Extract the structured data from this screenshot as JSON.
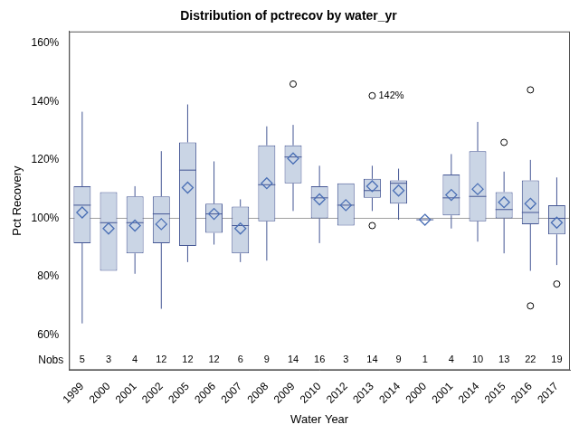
{
  "chart_data": {
    "type": "box",
    "title": "Distribution of pctrecov by water_yr",
    "x_label": "Water Year",
    "y_label": "Pct Recovery",
    "categories": [
      "1999",
      "2000",
      "2001",
      "2002",
      "2005",
      "2006",
      "2007",
      "2008",
      "2009",
      "2010",
      "2012",
      "2013",
      "2014",
      "2000",
      "2001",
      "2014",
      "2015",
      "2016",
      "2017"
    ],
    "stats": [
      {
        "min": 64,
        "q1": 91.5,
        "median": 104.5,
        "q3": 111,
        "max": 136.5,
        "mean": 102,
        "outliers": []
      },
      {
        "min": 82,
        "q1": 82,
        "median": 98.5,
        "q3": 109,
        "max": 109,
        "mean": 96.5,
        "outliers": []
      },
      {
        "min": 81,
        "q1": 88,
        "median": 98.5,
        "q3": 107.5,
        "max": 111,
        "mean": 97.5,
        "outliers": []
      },
      {
        "min": 69,
        "q1": 91.5,
        "median": 101.5,
        "q3": 107.5,
        "max": 123,
        "mean": 98,
        "outliers": []
      },
      {
        "min": 85,
        "q1": 90.5,
        "median": 116.5,
        "q3": 126,
        "max": 139,
        "mean": 110.5,
        "outliers": []
      },
      {
        "min": 91,
        "q1": 95,
        "median": 101.5,
        "q3": 105,
        "max": 119.5,
        "mean": 101.5,
        "outliers": []
      },
      {
        "min": 85,
        "q1": 88,
        "median": 97.5,
        "q3": 104,
        "max": 106.5,
        "mean": 96.5,
        "outliers": []
      },
      {
        "min": 85.5,
        "q1": 99,
        "median": 111.5,
        "q3": 125,
        "max": 131.5,
        "mean": 112,
        "outliers": []
      },
      {
        "min": 102.5,
        "q1": 112,
        "median": 121,
        "q3": 125,
        "max": 132,
        "mean": 120.5,
        "outliers": [
          146
        ]
      },
      {
        "min": 91.5,
        "q1": 100,
        "median": 107,
        "q3": 111,
        "max": 118,
        "mean": 106.5,
        "outliers": []
      },
      {
        "min": 97.5,
        "q1": 97.5,
        "median": 104.5,
        "q3": 112,
        "max": 112,
        "mean": 104.5,
        "outliers": []
      },
      {
        "min": 102.5,
        "q1": 107,
        "median": 109.5,
        "q3": 113.5,
        "max": 118,
        "mean": 111,
        "outliers": [
          142,
          97.5
        ]
      },
      {
        "min": 99.5,
        "q1": 105,
        "median": 112,
        "q3": 113,
        "max": 117,
        "mean": 109.5,
        "outliers": []
      },
      {
        "min": 99.5,
        "q1": 99.5,
        "median": 99.5,
        "q3": 99.5,
        "max": 99.5,
        "mean": 99.5,
        "outliers": []
      },
      {
        "min": 96.5,
        "q1": 101,
        "median": 107,
        "q3": 115,
        "max": 122,
        "mean": 108,
        "outliers": []
      },
      {
        "min": 92,
        "q1": 99,
        "median": 107.5,
        "q3": 123,
        "max": 133,
        "mean": 110,
        "outliers": []
      },
      {
        "min": 88,
        "q1": 100,
        "median": 103,
        "q3": 109,
        "max": 116,
        "mean": 105.5,
        "outliers": [
          126
        ]
      },
      {
        "min": 82,
        "q1": 98,
        "median": 102,
        "q3": 113,
        "max": 120,
        "mean": 105,
        "outliers": [
          144,
          70
        ]
      },
      {
        "min": 84,
        "q1": 94.5,
        "median": 100,
        "q3": 104.5,
        "max": 114,
        "mean": 98.5,
        "outliers": [
          77.5
        ]
      }
    ],
    "nobs_label": "Nobs",
    "nobs": [
      5,
      3,
      4,
      12,
      12,
      12,
      6,
      9,
      14,
      16,
      3,
      14,
      9,
      1,
      4,
      10,
      13,
      22,
      19
    ],
    "reference_line": 100,
    "annotations": [
      {
        "label": "142%",
        "x_index": 11,
        "y": 142
      }
    ],
    "color": "#cad5e5",
    "ylim": [
      48,
      164
    ],
    "yticks": [
      {
        "value": 60,
        "label": "60%"
      },
      {
        "value": 80,
        "label": "80%"
      },
      {
        "value": 100,
        "label": "100%"
      },
      {
        "value": 120,
        "label": "120%"
      },
      {
        "value": 140,
        "label": "140%"
      },
      {
        "value": 160,
        "label": "160%"
      }
    ],
    "grid": false
  }
}
